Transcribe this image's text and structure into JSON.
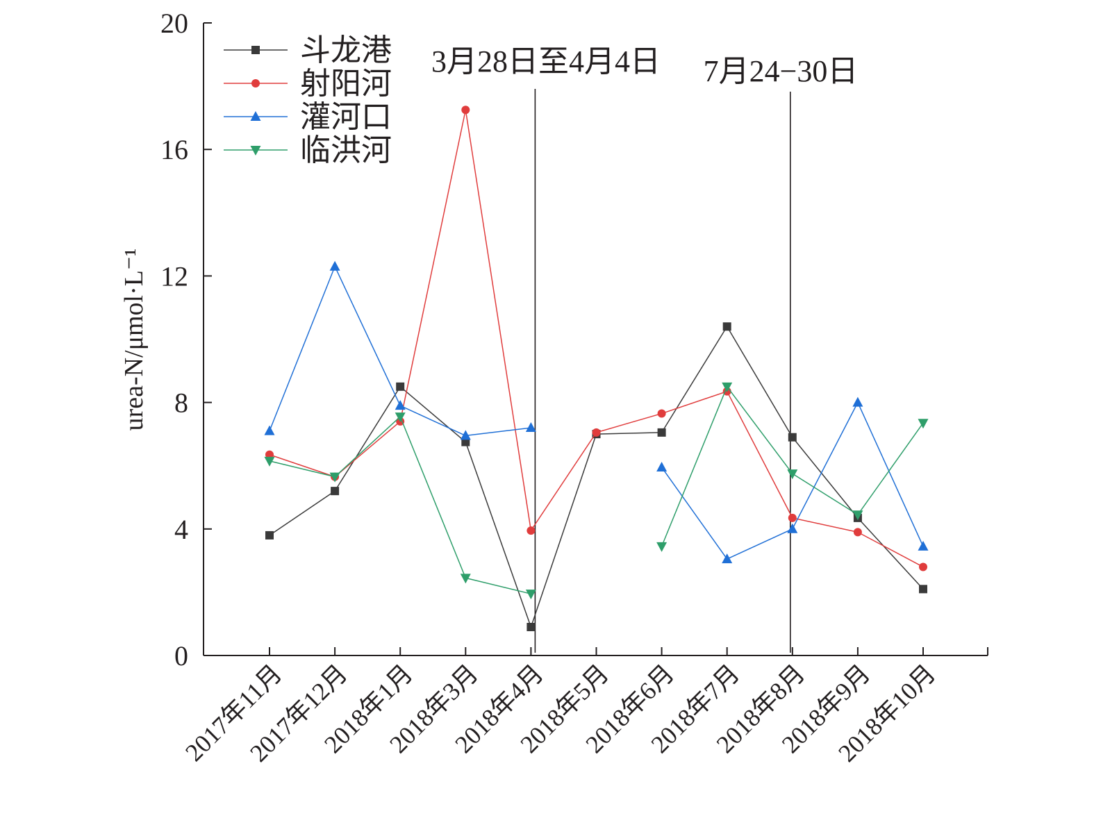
{
  "chart_data": {
    "type": "line",
    "title": "",
    "xlabel": "",
    "ylabel": "urea-N/μmol·L⁻¹",
    "ylim": [
      0,
      20
    ],
    "yticks": [
      "0",
      "4",
      "8",
      "12",
      "16",
      "20"
    ],
    "categories": [
      "2017年11月",
      "2017年12月",
      "2018年1月",
      "2018年3月",
      "2018年4月",
      "2018年5月",
      "2018年6月",
      "2018年7月",
      "2018年8月",
      "2018年9月",
      "2018年10月"
    ],
    "series": [
      {
        "name": "斗龙港",
        "color": "#3a3a3a",
        "marker": "square",
        "values": [
          3.8,
          5.2,
          8.5,
          6.75,
          0.9,
          7.0,
          7.05,
          10.4,
          6.9,
          4.35,
          2.1
        ]
      },
      {
        "name": "射阳河",
        "color": "#e03c3c",
        "marker": "circle",
        "values": [
          6.35,
          5.65,
          7.4,
          17.25,
          3.95,
          7.05,
          7.65,
          8.35,
          4.35,
          3.9,
          2.8
        ]
      },
      {
        "name": "灌河口",
        "color": "#1f6fd6",
        "marker": "triangle-up",
        "values": [
          7.1,
          12.3,
          7.9,
          6.95,
          7.2,
          null,
          5.95,
          3.05,
          4.0,
          8.0,
          3.45
        ]
      },
      {
        "name": "临洪河",
        "color": "#2e9e6a",
        "marker": "triangle-down",
        "values": [
          6.15,
          5.65,
          7.55,
          2.45,
          1.95,
          null,
          3.45,
          8.5,
          5.75,
          4.45,
          7.35
        ]
      }
    ],
    "annotations": [
      {
        "text": "3月28日至4月4日",
        "divider_after_index": 4
      },
      {
        "text": "7月24−30日",
        "divider_after_index": 8
      }
    ],
    "legend_position": "top-left",
    "grid": false
  }
}
